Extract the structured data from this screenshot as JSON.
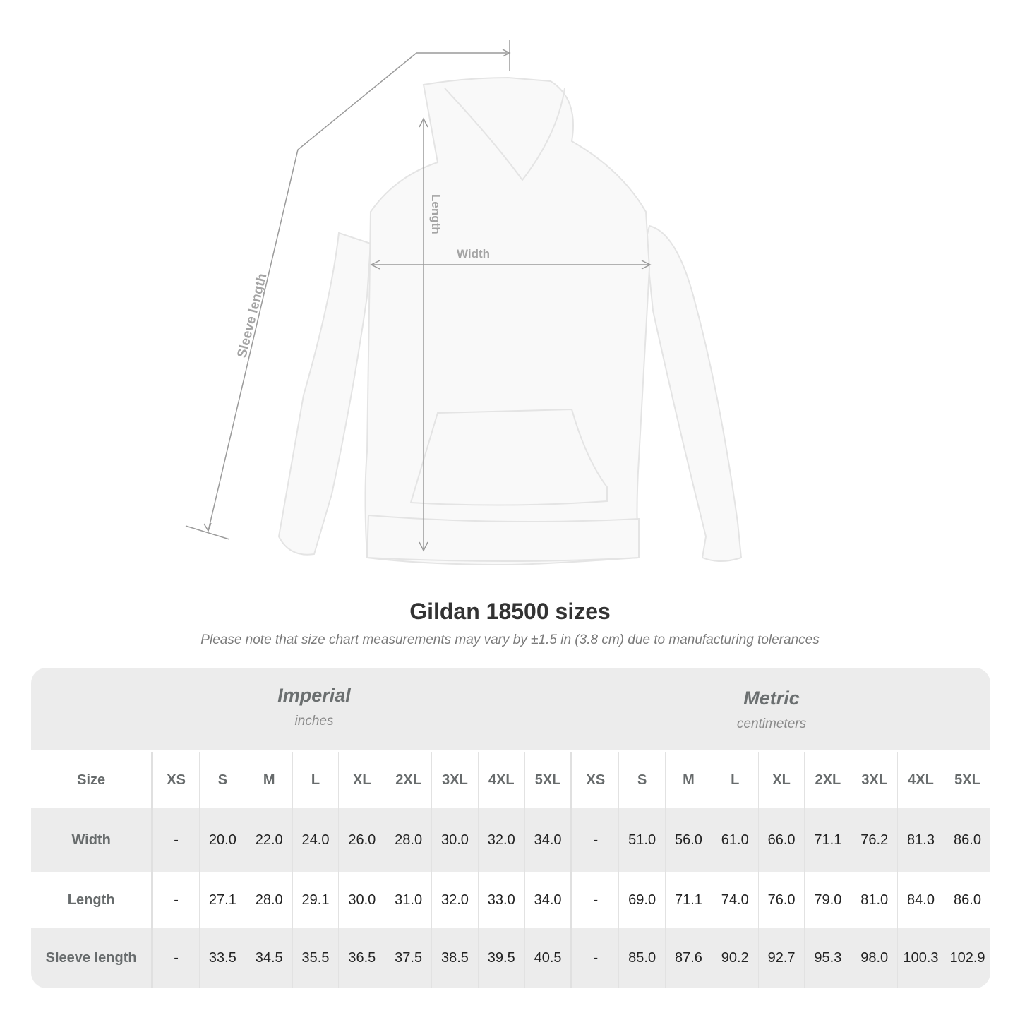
{
  "illustration": {
    "labels": {
      "sleeve": "Sleeve length",
      "length": "Length",
      "width": "Width"
    },
    "line_color": "#9a9a9a"
  },
  "title": "Gildan 18500 sizes",
  "note": "Please note that size chart measurements may vary by ±1.5 in (3.8 cm) due to manufacturing tolerances",
  "table": {
    "imperial": {
      "heading": "Imperial",
      "unit": "inches"
    },
    "metric": {
      "heading": "Metric",
      "unit": "centimeters"
    },
    "size_label": "Size",
    "sizes": [
      "XS",
      "S",
      "M",
      "L",
      "XL",
      "2XL",
      "3XL",
      "4XL",
      "5XL"
    ],
    "rows": [
      {
        "label": "Width",
        "imperial": [
          "-",
          "20.0",
          "22.0",
          "24.0",
          "26.0",
          "28.0",
          "30.0",
          "32.0",
          "34.0"
        ],
        "metric": [
          "-",
          "51.0",
          "56.0",
          "61.0",
          "66.0",
          "71.1",
          "76.2",
          "81.3",
          "86.0"
        ]
      },
      {
        "label": "Length",
        "imperial": [
          "-",
          "27.1",
          "28.0",
          "29.1",
          "30.0",
          "31.0",
          "32.0",
          "33.0",
          "34.0"
        ],
        "metric": [
          "-",
          "69.0",
          "71.1",
          "74.0",
          "76.0",
          "79.0",
          "81.0",
          "84.0",
          "86.0"
        ]
      },
      {
        "label": "Sleeve length",
        "imperial": [
          "-",
          "33.5",
          "34.5",
          "35.5",
          "36.5",
          "37.5",
          "38.5",
          "39.5",
          "40.5"
        ],
        "metric": [
          "-",
          "85.0",
          "87.6",
          "90.2",
          "92.7",
          "95.3",
          "98.0",
          "100.3",
          "102.9"
        ]
      }
    ]
  }
}
